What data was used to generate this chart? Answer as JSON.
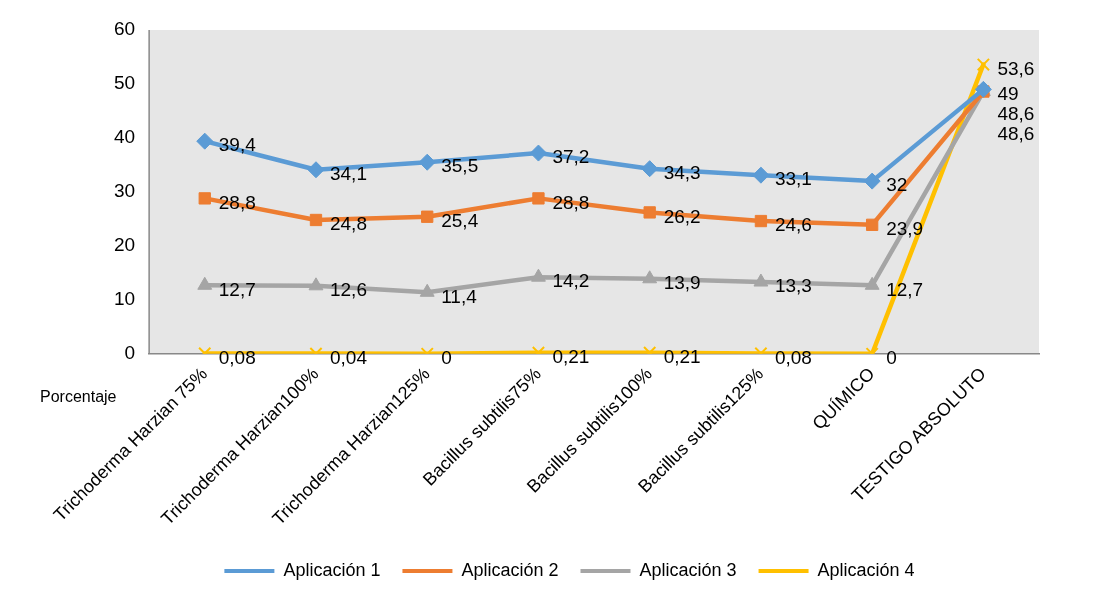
{
  "chart_data": {
    "type": "line",
    "categories": [
      "Trichoderma Harzian 75%",
      "Trichoderma Harzian100%",
      "Trichoderma Harzian125%",
      "Bacillus subtilis75%",
      "Bacillus subtilis100%",
      "Bacillus subtilis125%",
      "QUÍMICO",
      "TESTIGO ABSOLUTO"
    ],
    "series": [
      {
        "name": "Aplicación 1",
        "color": "#5b9bd5",
        "marker": "diamond",
        "values": [
          39.4,
          34.1,
          35.5,
          37.2,
          34.3,
          33.1,
          32,
          49
        ],
        "value_labels": [
          "39,4",
          "34,1",
          "35,5",
          "37,2",
          "34,3",
          "33,1",
          "32",
          "49"
        ]
      },
      {
        "name": "Aplicación 2",
        "color": "#ed7d31",
        "marker": "square",
        "values": [
          28.8,
          24.8,
          25.4,
          28.8,
          26.2,
          24.6,
          23.9,
          48.6
        ],
        "value_labels": [
          "28,8",
          "24,8",
          "25,4",
          "28,8",
          "26,2",
          "24,6",
          "23,9",
          "48,6"
        ]
      },
      {
        "name": "Aplicación 3",
        "color": "#a5a5a5",
        "marker": "triangle",
        "values": [
          12.7,
          12.6,
          11.4,
          14.2,
          13.9,
          13.3,
          12.7,
          48.6
        ],
        "value_labels": [
          "12,7",
          "12,6",
          "11,4",
          "14,2",
          "13,9",
          "13,3",
          "12,7",
          "48,6"
        ]
      },
      {
        "name": "Aplicación 4",
        "color": "#ffc000",
        "marker": "cross",
        "values": [
          0.08,
          0.04,
          0,
          0.21,
          0.21,
          0.08,
          0,
          53.6
        ],
        "value_labels": [
          "0,08",
          "0,04",
          "0",
          "0,21",
          "0,21",
          "0,08",
          "0",
          "53,6"
        ]
      }
    ],
    "ylim": [
      0,
      60
    ],
    "yticks": [
      0,
      10,
      20,
      30,
      40,
      50,
      60
    ],
    "grid": false,
    "legend": "bottom",
    "line_style": "solid",
    "annotations": [
      "Porcentaje"
    ]
  }
}
